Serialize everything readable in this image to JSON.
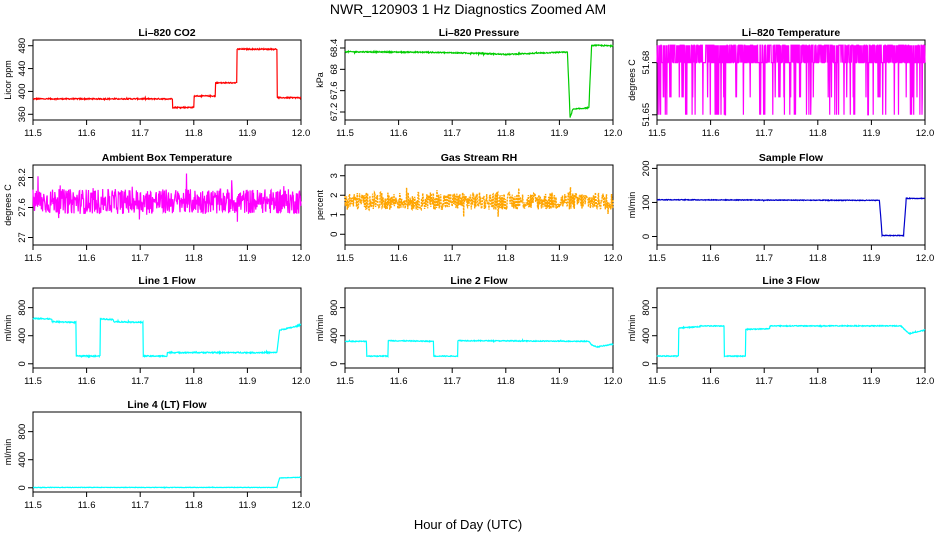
{
  "page_title": "NWR_120903  1 Hz Diagnostics Zoomed AM",
  "x_axis_label": "Hour of Day (UTC)",
  "chart_data": [
    {
      "id": "co2",
      "type": "line",
      "title": "Li–820 CO2",
      "xlabel": "",
      "ylabel": "Licor ppm",
      "color": "#ff0000",
      "xlim": [
        11.5,
        12.0
      ],
      "ylim": [
        350,
        490
      ],
      "xticks": [
        "11.5",
        "11.6",
        "11.7",
        "11.8",
        "11.9",
        "12.0"
      ],
      "yticks": [
        360,
        400,
        440,
        480
      ],
      "series": [
        {
          "x": [
            11.5,
            11.76,
            11.76,
            11.8,
            11.8,
            11.84,
            11.84,
            11.88,
            11.88,
            11.955,
            11.955,
            12.0
          ],
          "y": [
            387,
            387,
            372,
            372,
            392,
            392,
            415,
            415,
            474,
            474,
            389,
            389
          ],
          "noise": 1
        }
      ]
    },
    {
      "id": "pressure",
      "type": "line",
      "title": "Li–820 Pressure",
      "xlabel": "",
      "ylabel": "kPa",
      "color": "#00cc00",
      "xlim": [
        11.5,
        12.0
      ],
      "ylim": [
        67.05,
        68.55
      ],
      "xticks": [
        "11.5",
        "11.6",
        "11.7",
        "11.8",
        "11.9",
        "12.0"
      ],
      "yticks": [
        67.2,
        67.6,
        68.0,
        68.4
      ],
      "series": [
        {
          "x": [
            11.5,
            11.65,
            11.75,
            11.8,
            11.9,
            11.915,
            11.92,
            11.925,
            11.955,
            11.96,
            11.965,
            12.0
          ],
          "y": [
            68.33,
            68.32,
            68.3,
            68.28,
            68.32,
            68.32,
            67.1,
            67.25,
            67.28,
            68.44,
            68.45,
            68.44
          ],
          "noise": 0.01
        }
      ]
    },
    {
      "id": "licor_temp",
      "type": "line",
      "title": "Li–820 Temperature",
      "xlabel": "",
      "ylabel": "degrees C",
      "color": "#ff00ff",
      "xlim": [
        11.5,
        12.0
      ],
      "ylim": [
        51.647,
        51.693
      ],
      "xticks": [
        "11.5",
        "11.6",
        "11.7",
        "11.8",
        "11.9",
        "12.0"
      ],
      "yticks": [
        51.65,
        51.68
      ],
      "levels": [
        51.65,
        51.66,
        51.68,
        51.69
      ]
    },
    {
      "id": "box_temp",
      "type": "line",
      "title": "Ambient Box Temperature",
      "xlabel": "",
      "ylabel": "degrees C",
      "color": "#ff00ff",
      "xlim": [
        11.5,
        12.0
      ],
      "ylim": [
        26.85,
        28.45
      ],
      "xticks": [
        "11.5",
        "11.6",
        "11.7",
        "11.8",
        "11.9",
        "12.0"
      ],
      "yticks": [
        27.0,
        27.6,
        28.2
      ],
      "series": [
        {
          "x": [
            11.5,
            12.0
          ],
          "y": [
            27.72,
            27.72
          ],
          "noise": 0.25
        }
      ]
    },
    {
      "id": "rh",
      "type": "line",
      "title": "Gas Stream RH",
      "xlabel": "",
      "ylabel": "percent",
      "color": "#ffa500",
      "xlim": [
        11.5,
        12.0
      ],
      "ylim": [
        -0.55,
        3.55
      ],
      "xticks": [
        "11.5",
        "11.6",
        "11.7",
        "11.8",
        "11.9",
        "12.0"
      ],
      "yticks": [
        0,
        1,
        2,
        3
      ],
      "series": [
        {
          "x": [
            11.5,
            12.0
          ],
          "y": [
            1.7,
            1.7
          ],
          "noise": 0.45
        }
      ]
    },
    {
      "id": "sample_flow",
      "type": "line",
      "title": "Sample Flow",
      "xlabel": "",
      "ylabel": "ml/min",
      "color": "#0000cc",
      "xlim": [
        11.5,
        12.0
      ],
      "ylim": [
        -25,
        210
      ],
      "xticks": [
        "11.5",
        "11.6",
        "11.7",
        "11.8",
        "11.9",
        "12.0"
      ],
      "yticks": [
        0,
        100,
        200
      ],
      "series": [
        {
          "x": [
            11.5,
            11.915,
            11.92,
            11.96,
            11.965,
            12.0
          ],
          "y": [
            108,
            106,
            3,
            3,
            112,
            112
          ],
          "noise": 1
        }
      ]
    },
    {
      "id": "line1",
      "type": "line",
      "title": "Line 1 Flow",
      "xlabel": "",
      "ylabel": "ml/min",
      "color": "#00ffff",
      "xlim": [
        11.5,
        12.0
      ],
      "ylim": [
        -60,
        1080
      ],
      "xticks": [
        "11.5",
        "11.6",
        "11.7",
        "11.8",
        "11.9",
        "12.0"
      ],
      "yticks": [
        0,
        400,
        800
      ],
      "series": [
        {
          "x": [
            11.5,
            11.535,
            11.535,
            11.58,
            11.58,
            11.625,
            11.625,
            11.65,
            11.65,
            11.705,
            11.705,
            11.75,
            11.75,
            11.955,
            11.96,
            11.99,
            12.0
          ],
          "y": [
            645,
            640,
            600,
            590,
            110,
            110,
            640,
            630,
            600,
            590,
            110,
            110,
            160,
            160,
            480,
            530,
            560
          ],
          "noise": 8
        }
      ]
    },
    {
      "id": "line2",
      "type": "line",
      "title": "Line 2 Flow",
      "xlabel": "",
      "ylabel": "ml/min",
      "color": "#00ffff",
      "xlim": [
        11.5,
        12.0
      ],
      "ylim": [
        -60,
        1080
      ],
      "xticks": [
        "11.5",
        "11.6",
        "11.7",
        "11.8",
        "11.9",
        "12.0"
      ],
      "yticks": [
        0,
        400,
        800
      ],
      "series": [
        {
          "x": [
            11.5,
            11.54,
            11.54,
            11.58,
            11.58,
            11.665,
            11.665,
            11.71,
            11.71,
            11.955,
            11.96,
            11.97,
            12.0
          ],
          "y": [
            320,
            320,
            110,
            110,
            330,
            320,
            110,
            110,
            330,
            320,
            270,
            240,
            280
          ],
          "noise": 6
        }
      ]
    },
    {
      "id": "line3",
      "type": "line",
      "title": "Line 3 Flow",
      "xlabel": "",
      "ylabel": "ml/min",
      "color": "#00ffff",
      "xlim": [
        11.5,
        12.0
      ],
      "ylim": [
        -60,
        1080
      ],
      "xticks": [
        "11.5",
        "11.6",
        "11.7",
        "11.8",
        "11.9",
        "12.0"
      ],
      "yticks": [
        0,
        400,
        800
      ],
      "series": [
        {
          "x": [
            11.5,
            11.54,
            11.54,
            11.58,
            11.58,
            11.625,
            11.625,
            11.665,
            11.665,
            11.71,
            11.71,
            11.955,
            11.97,
            12.0
          ],
          "y": [
            110,
            110,
            510,
            530,
            540,
            540,
            110,
            110,
            490,
            500,
            540,
            540,
            430,
            480
          ],
          "noise": 6
        }
      ]
    },
    {
      "id": "line4",
      "type": "line",
      "title": "Line 4 (LT) Flow",
      "xlabel": "",
      "ylabel": "ml/min",
      "color": "#00ffff",
      "xlim": [
        11.5,
        12.0
      ],
      "ylim": [
        -60,
        1080
      ],
      "xticks": [
        "11.5",
        "11.6",
        "11.7",
        "11.8",
        "11.9",
        "12.0"
      ],
      "yticks": [
        0,
        400,
        800
      ],
      "series": [
        {
          "x": [
            11.5,
            11.955,
            11.96,
            12.0
          ],
          "y": [
            5,
            5,
            140,
            150
          ],
          "noise": 3
        }
      ]
    }
  ]
}
